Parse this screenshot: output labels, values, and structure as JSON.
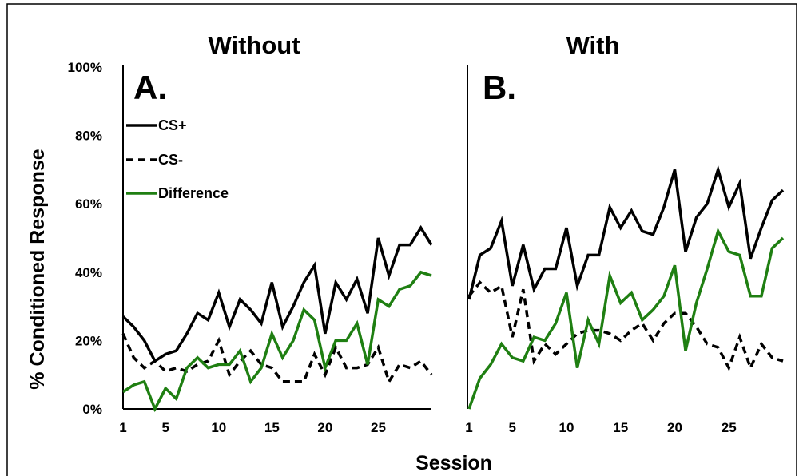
{
  "colors": {
    "cs_plus": "#000000",
    "cs_minus": "#000000",
    "difference": "#1f7f12",
    "border": "#000000"
  },
  "ylabel": "% Conditioned Response",
  "xlabel": "Session",
  "y_ticks": [
    "0%",
    "20%",
    "40%",
    "60%",
    "80%",
    "100%"
  ],
  "legend": {
    "cs_plus": "CS+",
    "cs_minus": "CS-",
    "difference": "Difference"
  },
  "chart_data": [
    {
      "type": "line",
      "title": "Without",
      "panel_label": "A.",
      "x": [
        1,
        2,
        3,
        4,
        5,
        6,
        7,
        8,
        9,
        10,
        11,
        12,
        13,
        14,
        15,
        16,
        17,
        18,
        19,
        20,
        21,
        22,
        23,
        24,
        25,
        26,
        27,
        28,
        29,
        30
      ],
      "x_ticks": [
        1,
        5,
        10,
        15,
        20,
        25
      ],
      "xlim": [
        1,
        30
      ],
      "ylim": [
        0,
        100
      ],
      "grid": false,
      "legend_position": "top-left",
      "series": [
        {
          "name": "CS+",
          "style": "solid",
          "values": [
            27,
            24,
            20,
            14,
            16,
            17,
            22,
            28,
            26,
            34,
            24,
            32,
            29,
            25,
            37,
            24,
            30,
            37,
            42,
            22,
            37,
            32,
            38,
            28,
            50,
            39,
            48,
            48,
            53,
            48
          ]
        },
        {
          "name": "CS-",
          "style": "dashed",
          "values": [
            22,
            15,
            12,
            14,
            11,
            12,
            11,
            13,
            14,
            20,
            10,
            14,
            17,
            13,
            12,
            8,
            8,
            8,
            16,
            10,
            18,
            12,
            12,
            13,
            18,
            8,
            13,
            12,
            14,
            10
          ]
        },
        {
          "name": "Difference",
          "style": "solid",
          "values": [
            5,
            7,
            8,
            0,
            6,
            3,
            12,
            15,
            12,
            13,
            13,
            17,
            8,
            12,
            22,
            15,
            20,
            29,
            26,
            12,
            20,
            20,
            25,
            13,
            32,
            30,
            35,
            36,
            40,
            39
          ]
        }
      ]
    },
    {
      "type": "line",
      "title": "With",
      "panel_label": "B.",
      "x": [
        1,
        2,
        3,
        4,
        5,
        6,
        7,
        8,
        9,
        10,
        11,
        12,
        13,
        14,
        15,
        16,
        17,
        18,
        19,
        20,
        21,
        22,
        23,
        24,
        25,
        26,
        27,
        28,
        29,
        30
      ],
      "x_ticks": [
        1,
        5,
        10,
        15,
        20,
        25
      ],
      "xlim": [
        1,
        30
      ],
      "ylim": [
        0,
        100
      ],
      "grid": false,
      "series": [
        {
          "name": "CS+",
          "style": "solid",
          "values": [
            32,
            45,
            47,
            55,
            36,
            48,
            35,
            41,
            41,
            53,
            36,
            45,
            45,
            59,
            53,
            58,
            52,
            51,
            59,
            70,
            46,
            56,
            60,
            70,
            59,
            66,
            44,
            53,
            61,
            64
          ]
        },
        {
          "name": "CS-",
          "style": "dashed",
          "values": [
            33,
            37,
            34,
            36,
            21,
            35,
            14,
            19,
            16,
            19,
            22,
            23,
            23,
            22,
            20,
            23,
            25,
            20,
            25,
            28,
            28,
            24,
            19,
            18,
            12,
            21,
            12,
            19,
            15,
            14
          ]
        },
        {
          "name": "Difference",
          "style": "solid",
          "values": [
            0,
            9,
            13,
            19,
            15,
            14,
            21,
            20,
            25,
            34,
            12,
            26,
            19,
            39,
            31,
            34,
            26,
            29,
            33,
            42,
            17,
            31,
            41,
            52,
            46,
            45,
            33,
            33,
            47,
            50
          ]
        }
      ]
    }
  ]
}
